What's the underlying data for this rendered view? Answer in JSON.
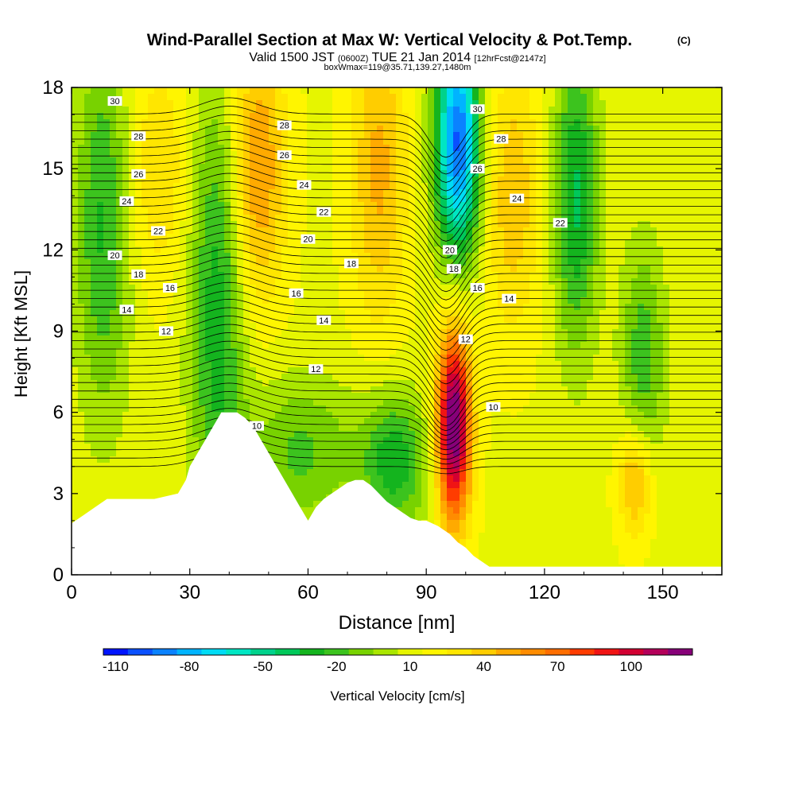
{
  "chart_data": {
    "type": "heatmap",
    "title": "Wind-Parallel Section at Max W: Vertical Velocity & Pot.Temp.",
    "title_mark": "(C)",
    "subtitle_parts": [
      "Valid 1500 JST ",
      "(0600Z)",
      " TUE 21 Jan 2014 ",
      "[12hrFcst@2147z]"
    ],
    "subtitle2": "boxWmax=119@35.71,139.27,1480m",
    "xlabel": "Distance [nm]",
    "ylabel": "Height [Kft MSL]",
    "xlim": [
      0,
      165
    ],
    "ylim": [
      0,
      18
    ],
    "x_ticks": [
      "0",
      "30",
      "60",
      "90",
      "120",
      "150"
    ],
    "y_ticks": [
      "0",
      "3",
      "6",
      "9",
      "12",
      "15",
      "18"
    ],
    "colorbar": {
      "label": "Vertical Velocity [cm/s]",
      "tick_labels": [
        "-110",
        "-80",
        "-50",
        "-20",
        "10",
        "40",
        "70",
        "100"
      ],
      "levels": [
        -120,
        -110,
        -100,
        -90,
        -80,
        -70,
        -60,
        -50,
        -40,
        -30,
        -20,
        -10,
        0,
        10,
        20,
        30,
        40,
        50,
        60,
        70,
        80,
        90,
        100,
        110,
        120
      ],
      "colors": [
        "#0014ff",
        "#0a50ff",
        "#0a82ff",
        "#00b4ff",
        "#00dcf5",
        "#00e6c3",
        "#00d28c",
        "#00c85a",
        "#14b41e",
        "#3cc31e",
        "#78d200",
        "#aae600",
        "#e6f500",
        "#fff500",
        "#ffe600",
        "#ffcd00",
        "#ffaa00",
        "#ff8c00",
        "#ff6e00",
        "#ff3c00",
        "#f01414",
        "#d20032",
        "#b4005a",
        "#870078"
      ]
    },
    "w_features": [
      {
        "x": 8,
        "z": 13,
        "sx": 5,
        "sz": 5,
        "w": -40
      },
      {
        "x": 22,
        "z": 15,
        "sx": 6,
        "sz": 3,
        "w": 22
      },
      {
        "x": 37,
        "z": 10,
        "sx": 5,
        "sz": 6,
        "w": -45
      },
      {
        "x": 47,
        "z": 15,
        "sx": 5,
        "sz": 3.5,
        "w": 45
      },
      {
        "x": 58,
        "z": 4.5,
        "sx": 10,
        "sz": 2,
        "w": -30
      },
      {
        "x": 82,
        "z": 4.2,
        "sx": 6,
        "sz": 1.8,
        "w": -45
      },
      {
        "x": 78,
        "z": 15,
        "sx": 5,
        "sz": 4,
        "w": 35
      },
      {
        "x": 97,
        "z": 5.5,
        "sx": 3,
        "sz": 2.5,
        "w": 119
      },
      {
        "x": 98,
        "z": 16,
        "sx": 4,
        "sz": 3,
        "w": -110
      },
      {
        "x": 112,
        "z": 14,
        "sx": 5,
        "sz": 3.5,
        "w": 30
      },
      {
        "x": 128,
        "z": 14,
        "sx": 4,
        "sz": 4,
        "w": -50
      },
      {
        "x": 143,
        "z": 3.5,
        "sx": 3,
        "sz": 1.5,
        "w": 40
      },
      {
        "x": 145,
        "z": 8,
        "sx": 4,
        "sz": 3,
        "w": -35
      }
    ],
    "potential_temperature": {
      "levels": [
        10,
        10.5,
        11,
        11.5,
        12,
        12.5,
        13,
        13.5,
        14,
        14.5,
        15,
        15.5,
        16,
        16.5,
        17,
        17.5,
        18,
        18.5,
        19,
        19.5,
        20,
        20.5,
        21,
        21.5,
        22,
        22.5,
        23,
        23.5,
        24,
        24.5,
        25,
        25.5,
        26,
        26.5,
        27,
        27.5,
        28,
        28.5,
        29,
        29.5,
        30,
        30.5,
        31
      ],
      "labels": [
        {
          "text": "30",
          "x": 11,
          "z": 17.5
        },
        {
          "text": "28",
          "x": 17,
          "z": 16.2
        },
        {
          "text": "26",
          "x": 17,
          "z": 14.8
        },
        {
          "text": "24",
          "x": 14,
          "z": 13.8
        },
        {
          "text": "22",
          "x": 22,
          "z": 12.7
        },
        {
          "text": "20",
          "x": 11,
          "z": 11.8
        },
        {
          "text": "18",
          "x": 17,
          "z": 11.1
        },
        {
          "text": "16",
          "x": 25,
          "z": 10.6
        },
        {
          "text": "14",
          "x": 14,
          "z": 9.8
        },
        {
          "text": "12",
          "x": 24,
          "z": 9.0
        },
        {
          "text": "28",
          "x": 54,
          "z": 16.6
        },
        {
          "text": "26",
          "x": 54,
          "z": 15.5
        },
        {
          "text": "24",
          "x": 59,
          "z": 14.4
        },
        {
          "text": "22",
          "x": 64,
          "z": 13.4
        },
        {
          "text": "20",
          "x": 60,
          "z": 12.4
        },
        {
          "text": "18",
          "x": 71,
          "z": 11.5
        },
        {
          "text": "16",
          "x": 57,
          "z": 10.4
        },
        {
          "text": "14",
          "x": 64,
          "z": 9.4
        },
        {
          "text": "12",
          "x": 62,
          "z": 7.6
        },
        {
          "text": "10",
          "x": 47,
          "z": 5.5
        },
        {
          "text": "30",
          "x": 103,
          "z": 17.2
        },
        {
          "text": "28",
          "x": 109,
          "z": 16.1
        },
        {
          "text": "26",
          "x": 103,
          "z": 15.0
        },
        {
          "text": "24",
          "x": 113,
          "z": 13.9
        },
        {
          "text": "22",
          "x": 124,
          "z": 13.0
        },
        {
          "text": "20",
          "x": 96,
          "z": 12.0
        },
        {
          "text": "18",
          "x": 97,
          "z": 11.3
        },
        {
          "text": "16",
          "x": 103,
          "z": 10.6
        },
        {
          "text": "14",
          "x": 111,
          "z": 10.2
        },
        {
          "text": "12",
          "x": 100,
          "z": 8.7
        },
        {
          "text": "10",
          "x": 107,
          "z": 6.2
        }
      ]
    },
    "terrain": [
      [
        0,
        1.9
      ],
      [
        3,
        2.2
      ],
      [
        6,
        2.5
      ],
      [
        9,
        2.8
      ],
      [
        21,
        2.8
      ],
      [
        27,
        3.0
      ],
      [
        29,
        3.5
      ],
      [
        30,
        4.0
      ],
      [
        32,
        4.5
      ],
      [
        34,
        5.0
      ],
      [
        36,
        5.5
      ],
      [
        38,
        6.0
      ],
      [
        42,
        6.0
      ],
      [
        44,
        5.8
      ],
      [
        46,
        5.5
      ],
      [
        48,
        5.0
      ],
      [
        50,
        4.5
      ],
      [
        52,
        4.0
      ],
      [
        54,
        3.5
      ],
      [
        56,
        3.0
      ],
      [
        58,
        2.5
      ],
      [
        60,
        2.0
      ],
      [
        62,
        2.5
      ],
      [
        64,
        2.8
      ],
      [
        66,
        3.0
      ],
      [
        68,
        3.2
      ],
      [
        70,
        3.4
      ],
      [
        72,
        3.5
      ],
      [
        74,
        3.5
      ],
      [
        76,
        3.3
      ],
      [
        78,
        3.0
      ],
      [
        80,
        2.7
      ],
      [
        82,
        2.5
      ],
      [
        84,
        2.3
      ],
      [
        86,
        2.1
      ],
      [
        88,
        2.0
      ],
      [
        90,
        2.0
      ],
      [
        93,
        1.8
      ],
      [
        96,
        1.5
      ],
      [
        98,
        1.2
      ],
      [
        100,
        1.0
      ],
      [
        102,
        0.7
      ],
      [
        104,
        0.5
      ],
      [
        106,
        0.3
      ],
      [
        165,
        0.3
      ]
    ]
  }
}
